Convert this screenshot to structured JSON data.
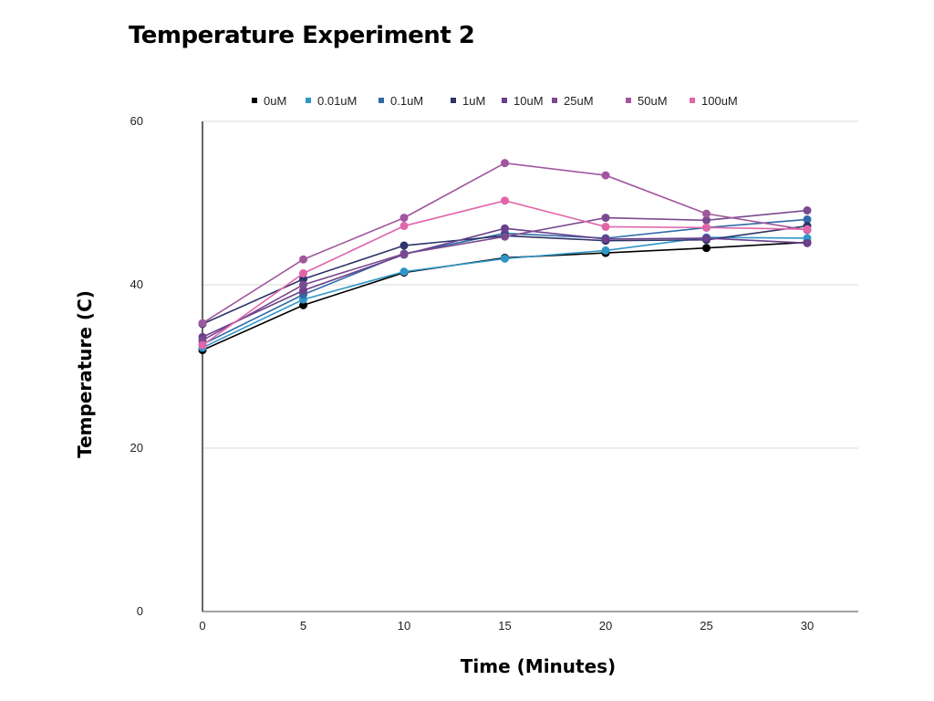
{
  "chart_data": {
    "type": "line",
    "title": "Temperature Experiment 2",
    "xlabel": "Time (Minutes)",
    "ylabel": "Temperature (C)",
    "x": [
      0,
      5,
      10,
      15,
      20,
      25,
      30
    ],
    "x_ticks": [
      "0",
      "5",
      "10",
      "15",
      "20",
      "25",
      "30"
    ],
    "y_ticks": [
      "0",
      "20",
      "40",
      "60"
    ],
    "ylim": [
      0,
      60
    ],
    "grid": "horizontal",
    "legend_position": "top",
    "series": [
      {
        "name": "0uM",
        "color": "#000000",
        "values": [
          32.0,
          37.5,
          41.5,
          43.3,
          43.9,
          44.5,
          45.2
        ]
      },
      {
        "name": "0.01uM",
        "color": "#2f96c8",
        "values": [
          32.3,
          38.2,
          41.6,
          43.2,
          44.2,
          45.8,
          45.7
        ]
      },
      {
        "name": "0.1uM",
        "color": "#2f6aa8",
        "values": [
          32.7,
          38.8,
          43.8,
          46.3,
          45.7,
          47.0,
          48.0
        ]
      },
      {
        "name": "1uM",
        "color": "#2e3369",
        "values": [
          35.2,
          40.7,
          44.8,
          46.0,
          45.4,
          45.5,
          47.2
        ]
      },
      {
        "name": "10uM",
        "color": "#6b3f8c",
        "values": [
          33.6,
          39.3,
          43.7,
          46.9,
          45.6,
          45.7,
          45.1
        ]
      },
      {
        "name": "25uM",
        "color": "#7a4a8f",
        "values": [
          33.2,
          40.0,
          43.8,
          45.9,
          48.2,
          47.9,
          49.1
        ]
      },
      {
        "name": "50uM",
        "color": "#a0579e",
        "values": [
          35.3,
          43.1,
          48.2,
          54.9,
          53.4,
          48.7,
          46.7
        ]
      },
      {
        "name": "100uM",
        "color": "#e066a8",
        "values": [
          32.6,
          41.4,
          47.2,
          50.3,
          47.1,
          47.0,
          46.8
        ]
      }
    ]
  }
}
